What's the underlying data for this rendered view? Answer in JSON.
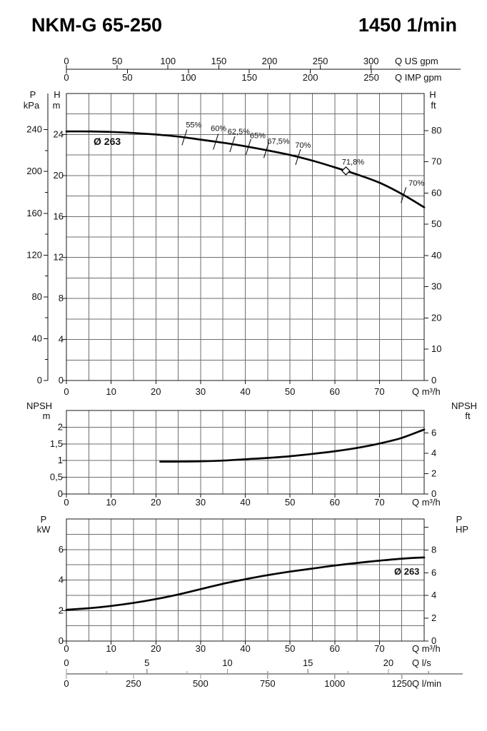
{
  "header": {
    "model": "NKM-G 65-250",
    "speed": "1450 1/min"
  },
  "colors": {
    "ink": "#111111",
    "grid": "#6e6e6e",
    "frame": "#1a1a1a",
    "curve": "#050505",
    "subaxis": "#999999"
  },
  "flow": {
    "unit": "Q m³/h",
    "ticks": [
      0,
      10,
      20,
      30,
      40,
      50,
      60,
      70
    ],
    "max": 80,
    "grid_step": 5
  },
  "top_axis": {
    "us": {
      "unit": "Q US gpm",
      "ticks": [
        0,
        50,
        100,
        150,
        200,
        250,
        300
      ],
      "gpm_per_m3h": 4.403
    },
    "imp": {
      "unit": "Q IMP gpm",
      "ticks": [
        0,
        50,
        100,
        150,
        200,
        250
      ],
      "gpm_per_m3h": 3.666
    }
  },
  "ls_axis": {
    "unit": "Q l/s",
    "ticks": [
      0,
      5,
      10,
      15,
      20
    ],
    "m3h_per_unit": 3.6,
    "minor_step": 2.5,
    "tick_max": 22.5
  },
  "lmin_axis": {
    "unit": "Q l/min",
    "ticks": [
      0,
      250,
      500,
      750,
      1000,
      1250
    ],
    "m3h_per_unit": 0.06
  },
  "chart_data": [
    {
      "type": "line",
      "id": "head",
      "xlabel": "Q m³/h",
      "x_range": [
        0,
        80
      ],
      "grid": true,
      "pressure_axis": {
        "title_top": "P",
        "title_unit": "kPa",
        "ticks": [
          240,
          200,
          160,
          120,
          80,
          40,
          0
        ],
        "kpa_per_m": 9.807,
        "minor_step_kpa": 20
      },
      "left_axis": {
        "title_top": "H",
        "title_unit": "m",
        "ticks": [
          24,
          20,
          16,
          12,
          8,
          4,
          0
        ],
        "max": 28,
        "grid_step": 2
      },
      "right_axis": {
        "title_top": "H",
        "title_unit": "ft",
        "ticks": [
          80,
          70,
          60,
          50,
          40,
          30,
          20,
          10,
          0
        ],
        "m_per_ft": 0.3048
      },
      "impeller_label": "Ø 263",
      "series": [
        {
          "name": "head-curve-Ø263",
          "points": [
            [
              0,
              24.3
            ],
            [
              5,
              24.3
            ],
            [
              10,
              24.25
            ],
            [
              15,
              24.15
            ],
            [
              20,
              24.0
            ],
            [
              25,
              23.8
            ],
            [
              30,
              23.5
            ],
            [
              35,
              23.2
            ],
            [
              40,
              22.85
            ],
            [
              45,
              22.45
            ],
            [
              50,
              22.0
            ],
            [
              55,
              21.45
            ],
            [
              60,
              20.8
            ],
            [
              65,
              20.1
            ],
            [
              70,
              19.3
            ],
            [
              75,
              18.2
            ],
            [
              80,
              16.9
            ]
          ]
        }
      ],
      "efficiency_marks": [
        {
          "q": 26.4,
          "label": "55%",
          "offset": [
            13,
            -14
          ]
        },
        {
          "q": 33.4,
          "label": "60%",
          "offset": [
            4,
            -15
          ]
        },
        {
          "q": 37.1,
          "label": "62,5%",
          "offset": [
            9,
            -14
          ]
        },
        {
          "q": 40.7,
          "label": "65%",
          "offset": [
            13,
            -12
          ]
        },
        {
          "q": 44.7,
          "label": "67,5%",
          "offset": [
            17,
            -9
          ]
        },
        {
          "q": 51.8,
          "label": "70%",
          "offset": [
            7,
            -13
          ]
        },
        {
          "q": 62.5,
          "label": "71,8%",
          "offset": [
            10,
            -9
          ],
          "bep": true
        },
        {
          "q": 75.4,
          "label": "70%",
          "offset": [
            18,
            -13
          ]
        }
      ]
    },
    {
      "type": "line",
      "id": "npsh",
      "xlabel": "Q m³/h",
      "x_range": [
        0,
        80
      ],
      "grid": true,
      "left_axis": {
        "title_top": "NPSH",
        "title_unit": "m",
        "tick_labels": [
          "2",
          "1,5",
          "1",
          "0,5",
          "0"
        ],
        "tick_values": [
          2,
          1.5,
          1,
          0.5,
          0
        ],
        "max": 2.5,
        "grid_step": 0.5
      },
      "right_axis": {
        "title_top": "NPSH",
        "title_unit": "ft",
        "ticks": [
          6,
          4,
          2,
          0
        ],
        "m_per_ft": 0.3048
      },
      "series": [
        {
          "name": "npsh-curve",
          "points": [
            [
              21,
              0.97
            ],
            [
              25,
              0.97
            ],
            [
              30,
              0.98
            ],
            [
              35,
              1.0
            ],
            [
              40,
              1.04
            ],
            [
              45,
              1.08
            ],
            [
              50,
              1.13
            ],
            [
              55,
              1.2
            ],
            [
              60,
              1.28
            ],
            [
              65,
              1.38
            ],
            [
              70,
              1.51
            ],
            [
              75,
              1.68
            ],
            [
              80,
              1.93
            ]
          ]
        }
      ]
    },
    {
      "type": "line",
      "id": "power",
      "xlabel": "Q m³/h",
      "x_range": [
        0,
        80
      ],
      "grid": true,
      "left_axis": {
        "title_top": "P",
        "title_unit": "kW",
        "ticks": [
          6,
          4,
          2,
          0
        ],
        "max": 8,
        "grid_step": 1
      },
      "right_axis": {
        "title_top": "P",
        "title_unit": "HP",
        "ticks": [
          8,
          6,
          4,
          2,
          0
        ],
        "kw_per_hp": 0.7457,
        "extra_tick_hp": 10
      },
      "impeller_label": "Ø 263",
      "series": [
        {
          "name": "power-curve-Ø263",
          "points": [
            [
              0,
              2.05
            ],
            [
              5,
              2.15
            ],
            [
              10,
              2.3
            ],
            [
              15,
              2.5
            ],
            [
              20,
              2.75
            ],
            [
              25,
              3.05
            ],
            [
              30,
              3.4
            ],
            [
              35,
              3.75
            ],
            [
              40,
              4.05
            ],
            [
              45,
              4.32
            ],
            [
              50,
              4.55
            ],
            [
              55,
              4.75
            ],
            [
              60,
              4.95
            ],
            [
              65,
              5.12
            ],
            [
              70,
              5.27
            ],
            [
              75,
              5.4
            ],
            [
              80,
              5.48
            ]
          ]
        }
      ]
    }
  ]
}
